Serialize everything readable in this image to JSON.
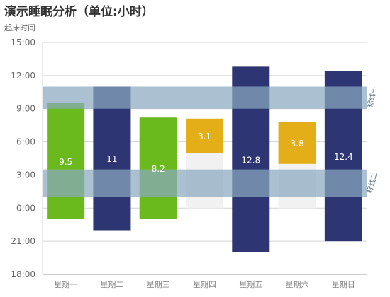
{
  "title": "演示睡眠分析（单位:小时）",
  "y_unit": "起床时间",
  "chart_data": {
    "type": "bar",
    "title": "演示睡眠分析（单位:小时）",
    "ylabel": "起床时间",
    "categories": [
      "星期一",
      "星期二",
      "星期三",
      "星期四",
      "星期五",
      "星期六",
      "星期日"
    ],
    "y_ticks": [
      "15:00",
      "12:00",
      "9:00",
      "6:00",
      "3:00",
      "0:00",
      "21:00",
      "18:00"
    ],
    "bars": [
      {
        "category": "星期一",
        "value": 9.5,
        "start": "23:00",
        "end": "9:30",
        "color": "#6aba1e"
      },
      {
        "category": "星期二",
        "value": 11,
        "start": "22:00",
        "end": "11:00",
        "color": "#2d3672"
      },
      {
        "category": "星期三",
        "value": 8.2,
        "start": "23:00",
        "end": "8:12",
        "color": "#6aba1e"
      },
      {
        "category": "星期四",
        "value": 3.1,
        "start": "5:00",
        "end": "8:06",
        "color": "#e3ae17",
        "background": "0:00–5:00"
      },
      {
        "category": "星期五",
        "value": 12.8,
        "start": "20:00",
        "end": "12:48",
        "color": "#2d3672"
      },
      {
        "category": "星期六",
        "value": 3.8,
        "start": "4:00",
        "end": "7:48",
        "color": "#e3ae17",
        "background": "0:00–4:00"
      },
      {
        "category": "星期日",
        "value": 12.4,
        "start": "21:00",
        "end": "12:24",
        "color": "#2d3672"
      }
    ],
    "bands": [
      {
        "label": "标线一",
        "from": "9:00",
        "to": "11:00"
      },
      {
        "label": "标线二",
        "from": "1:00",
        "to": "3:30"
      }
    ],
    "grid": true,
    "colors": {
      "green": "#6aba1e",
      "navy": "#2d3672",
      "yellow": "#e3ae17",
      "band": "#8aa9bf"
    }
  }
}
